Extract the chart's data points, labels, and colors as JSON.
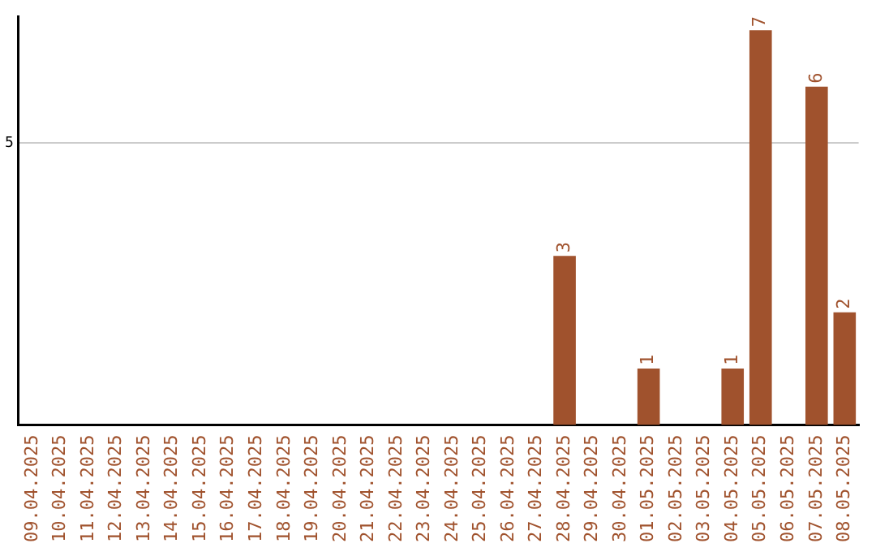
{
  "chart_data": {
    "type": "bar",
    "categories": [
      "09.04.2025",
      "10.04.2025",
      "11.04.2025",
      "12.04.2025",
      "13.04.2025",
      "14.04.2025",
      "15.04.2025",
      "16.04.2025",
      "17.04.2025",
      "18.04.2025",
      "19.04.2025",
      "20.04.2025",
      "21.04.2025",
      "22.04.2025",
      "23.04.2025",
      "24.04.2025",
      "25.04.2025",
      "26.04.2025",
      "27.04.2025",
      "28.04.2025",
      "29.04.2025",
      "30.04.2025",
      "01.05.2025",
      "02.05.2025",
      "03.05.2025",
      "04.05.2025",
      "05.05.2025",
      "06.05.2025",
      "07.05.2025",
      "08.05.2025"
    ],
    "values": [
      null,
      null,
      null,
      null,
      null,
      null,
      null,
      null,
      null,
      null,
      null,
      null,
      null,
      null,
      null,
      null,
      null,
      null,
      null,
      3,
      null,
      null,
      1,
      null,
      null,
      1,
      7,
      null,
      6,
      2
    ],
    "color": "#a0522d",
    "ylim": [
      0,
      7.25
    ],
    "yticks": [
      5
    ],
    "grid": "y",
    "data_labels": true,
    "legend": false
  }
}
